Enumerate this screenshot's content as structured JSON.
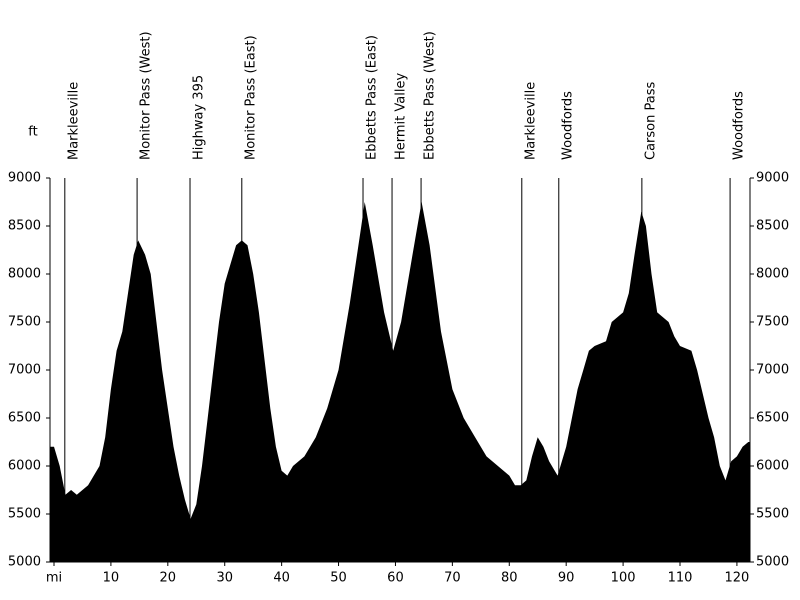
{
  "chart_data": {
    "type": "area",
    "y_label": "ft",
    "color": "#000000",
    "x": [
      0,
      1,
      2,
      3,
      4,
      6,
      7,
      8,
      9,
      10,
      11,
      12,
      13,
      14,
      14.8,
      16,
      17,
      18,
      19,
      20,
      21,
      22,
      23,
      24,
      25,
      26,
      27,
      28,
      29,
      30,
      31,
      32,
      33,
      34,
      35,
      36,
      37,
      38,
      39,
      40,
      41,
      42,
      44,
      46,
      48,
      50,
      52,
      54,
      54.6,
      56,
      58,
      59.6,
      61,
      63,
      64.6,
      66,
      68,
      70,
      72,
      74,
      76,
      78,
      80,
      81,
      82,
      83,
      84,
      85,
      86,
      87,
      88.5,
      90,
      91,
      92,
      93,
      94,
      95,
      97,
      98,
      100,
      101,
      102,
      103.2,
      104,
      105,
      106,
      108,
      109,
      110,
      112,
      113,
      115,
      116,
      117,
      118,
      119,
      120,
      121,
      122
    ],
    "values": [
      6200,
      6000,
      5700,
      5750,
      5700,
      5800,
      5900,
      6000,
      6300,
      6800,
      7200,
      7400,
      7800,
      8200,
      8350,
      8200,
      8000,
      7500,
      7000,
      6600,
      6200,
      5900,
      5650,
      5450,
      5600,
      6000,
      6500,
      7000,
      7500,
      7900,
      8100,
      8300,
      8350,
      8300,
      8000,
      7600,
      7100,
      6600,
      6200,
      5950,
      5900,
      6000,
      6100,
      6300,
      6600,
      7000,
      7700,
      8500,
      8750,
      8300,
      7600,
      7200,
      7500,
      8200,
      8750,
      8300,
      7400,
      6800,
      6500,
      6300,
      6100,
      6000,
      5900,
      5800,
      5800,
      5850,
      6100,
      6300,
      6200,
      6050,
      5900,
      6200,
      6500,
      6800,
      7000,
      7200,
      7250,
      7300,
      7500,
      7600,
      7800,
      8200,
      8650,
      8500,
      8000,
      7600,
      7500,
      7350,
      7250,
      7200,
      7000,
      6500,
      6300,
      6000,
      5850,
      6050,
      6100,
      6200,
      6250
    ],
    "xlim": [
      0,
      122.3
    ],
    "xticks": [
      {
        "value": 0,
        "label": "mi"
      },
      10,
      20,
      30,
      40,
      50,
      60,
      70,
      80,
      90,
      100,
      110,
      120
    ],
    "ylim": [
      5000,
      9000
    ],
    "yticks": [
      5000,
      5500,
      6000,
      6500,
      7000,
      7500,
      8000,
      8500,
      9000
    ],
    "waypoints": [
      {
        "label": "Markleeville",
        "mile": 1.9
      },
      {
        "label": "Monitor Pass (West)",
        "mile": 14.6
      },
      {
        "label": "Highway 395",
        "mile": 23.9
      },
      {
        "label": "Monitor Pass (East)",
        "mile": 33.0
      },
      {
        "label": "Ebbetts Pass (East)",
        "mile": 54.3
      },
      {
        "label": "Hermit Valley",
        "mile": 59.4
      },
      {
        "label": "Ebbetts Pass (West)",
        "mile": 64.5
      },
      {
        "label": "Markleeville",
        "mile": 82.2
      },
      {
        "label": "Woodfords",
        "mile": 88.7
      },
      {
        "label": "Carson Pass",
        "mile": 103.3
      },
      {
        "label": "Woodfords",
        "mile": 118.8
      }
    ]
  }
}
